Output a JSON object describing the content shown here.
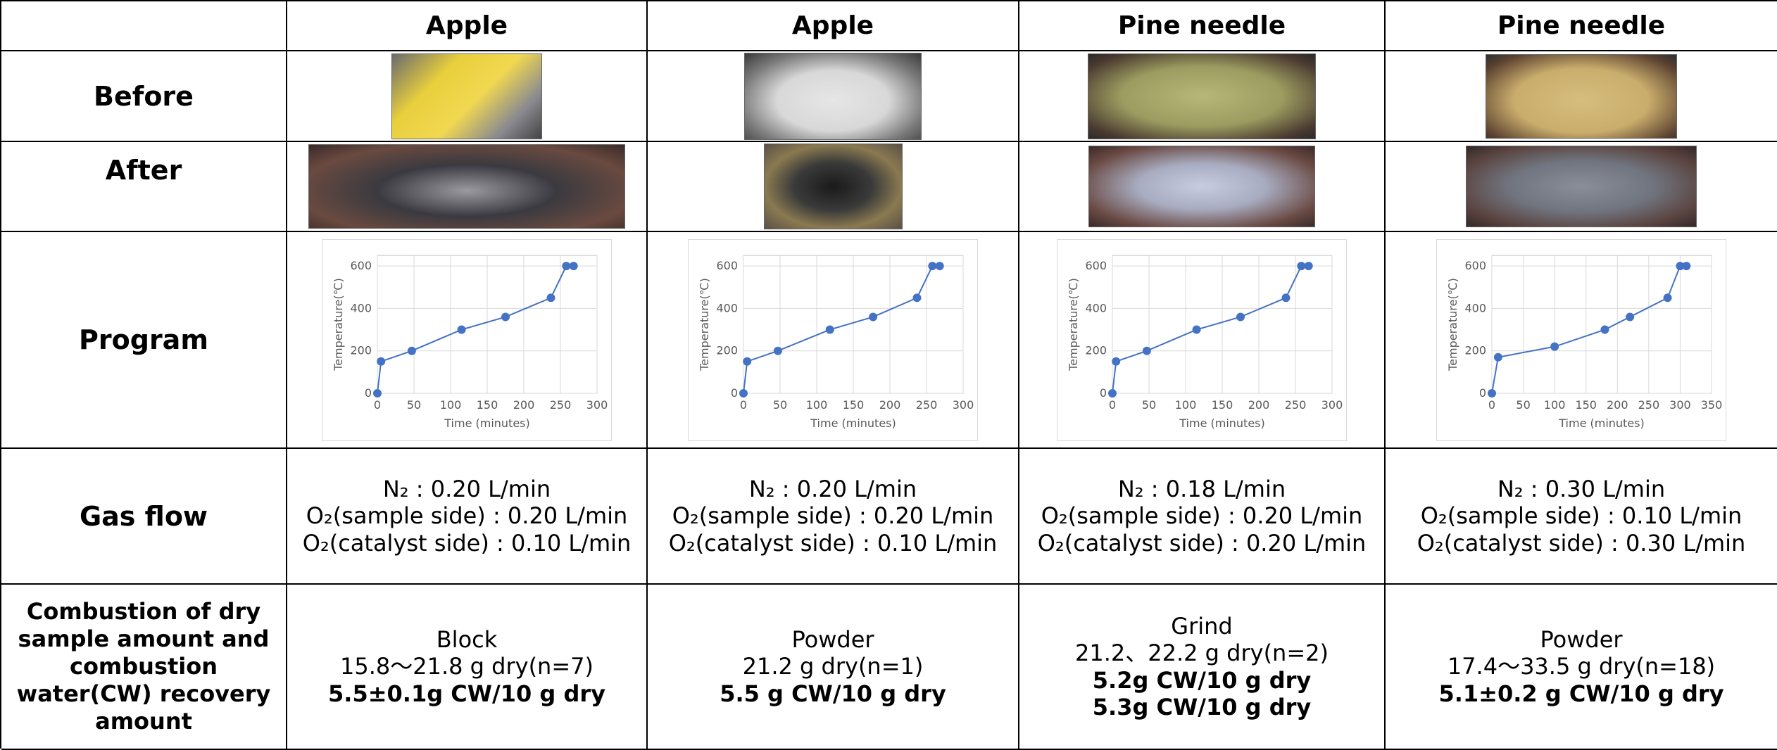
{
  "table": {
    "headers": [
      "Apple",
      "Apple",
      "Pine needle",
      "Pine needle"
    ],
    "row_labels": [
      "Before",
      "After",
      "Program",
      "Gas flow",
      "Combustion of dry sample amount and combustion water(CW) recovery amount"
    ],
    "charts": [
      {
        "type": "line",
        "x_label": "Time (minutes)",
        "y_label": "Temperature(℃)",
        "color": "#4472c4",
        "grid": true,
        "x": [
          0,
          5,
          47,
          115,
          175,
          237,
          258,
          268
        ],
        "values": [
          0,
          150,
          200,
          300,
          360,
          450,
          600,
          600
        ],
        "xlim": [
          0,
          300
        ],
        "xticks": [
          0,
          50,
          100,
          150,
          200,
          250,
          300
        ],
        "ylim": [
          0,
          650
        ],
        "yticks": [
          0,
          200,
          400,
          600
        ]
      },
      {
        "type": "line",
        "x_label": "Time (minutes)",
        "y_label": "Temperature(℃)",
        "color": "#4472c4",
        "grid": true,
        "x": [
          0,
          5,
          47,
          118,
          177,
          237,
          258,
          268
        ],
        "values": [
          0,
          150,
          200,
          300,
          360,
          450,
          600,
          600
        ],
        "xlim": [
          0,
          300
        ],
        "xticks": [
          0,
          50,
          100,
          150,
          200,
          250,
          300
        ],
        "ylim": [
          0,
          650
        ],
        "yticks": [
          0,
          200,
          400,
          600
        ]
      },
      {
        "type": "line",
        "x_label": "Time (minutes)",
        "y_label": "Temperature(℃)",
        "color": "#4472c4",
        "grid": true,
        "x": [
          0,
          5,
          47,
          115,
          175,
          237,
          258,
          268
        ],
        "values": [
          0,
          150,
          200,
          300,
          360,
          450,
          600,
          600
        ],
        "xlim": [
          0,
          300
        ],
        "xticks": [
          0,
          50,
          100,
          150,
          200,
          250,
          300
        ],
        "ylim": [
          0,
          650
        ],
        "yticks": [
          0,
          200,
          400,
          600
        ]
      },
      {
        "type": "line",
        "x_label": "Time (minutes)",
        "y_label": "Temperature(℃)",
        "color": "#4472c4",
        "grid": true,
        "x": [
          0,
          10,
          100,
          180,
          220,
          280,
          300,
          310
        ],
        "values": [
          0,
          170,
          220,
          300,
          360,
          450,
          600,
          600
        ],
        "xlim": [
          0,
          350
        ],
        "xticks": [
          0,
          50,
          100,
          150,
          200,
          250,
          300,
          350
        ],
        "ylim": [
          0,
          650
        ],
        "yticks": [
          0,
          200,
          400,
          600
        ]
      }
    ],
    "gas_flow": [
      [
        "N₂ : 0.20 L/min",
        "O₂(sample side) : 0.20 L/min",
        "O₂(catalyst side) : 0.10 L/min"
      ],
      [
        "N₂ : 0.20 L/min",
        "O₂(sample side) : 0.20 L/min",
        "O₂(catalyst side) : 0.10 L/min"
      ],
      [
        "N₂ : 0.18 L/min",
        "O₂(sample side) : 0.20 L/min",
        "O₂(catalyst side) : 0.20 L/min"
      ],
      [
        "N₂ : 0.30 L/min",
        "O₂(sample side) : 0.10 L/min",
        "O₂(catalyst side) : 0.30 L/min"
      ]
    ],
    "combustion": [
      {
        "form": "Block",
        "amount": "15.8～21.8 g dry(n=7)",
        "recovery": [
          "5.5±0.1g CW/10 g dry"
        ]
      },
      {
        "form": "Powder",
        "amount": "21.2 g dry(n=1)",
        "recovery": [
          "5.5 g CW/10 g dry"
        ]
      },
      {
        "form": "Grind",
        "amount": "21.2、22.2 g dry(n=2)",
        "recovery": [
          "5.2g CW/10 g dry",
          "5.3g CW/10 g dry"
        ]
      },
      {
        "form": "Powder",
        "amount": "17.4～33.5 g dry(n=18)",
        "recovery": [
          "5.1±0.2 g CW/10 g dry"
        ]
      }
    ]
  }
}
